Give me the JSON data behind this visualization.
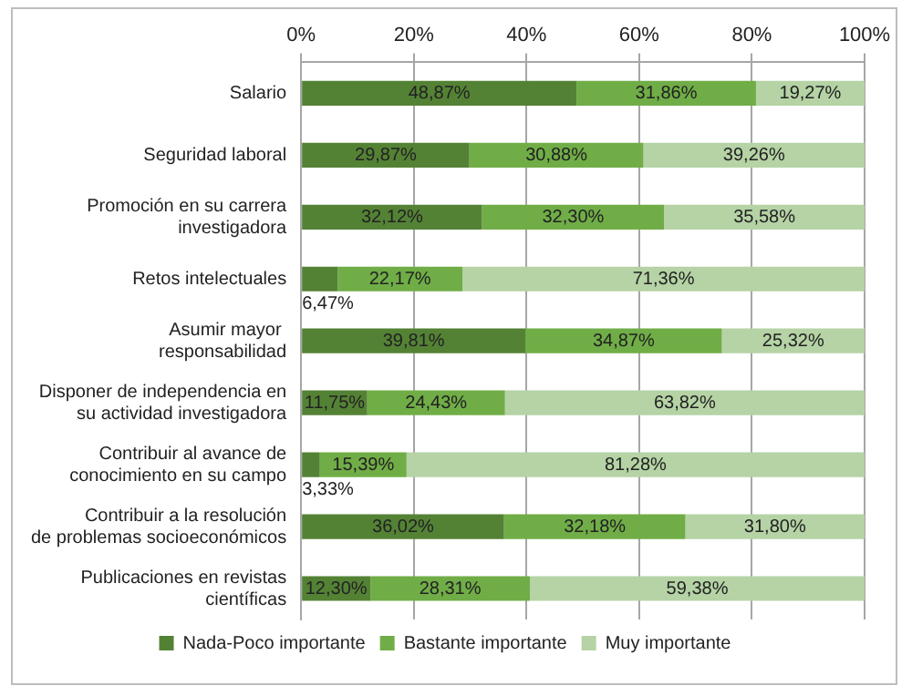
{
  "chart_data": {
    "type": "bar",
    "orientation": "horizontal",
    "stacked": true,
    "categories": [
      "Salario",
      "Seguridad laboral",
      "Promoción en su carrera investigadora",
      "Retos intelectuales",
      "Asumir mayor  responsabilidad",
      "Disponer de independencia en su actividad investigadora",
      "Contribuir al avance de conocimiento en su campo",
      "Contribuir a la resolución de problemas socioeconómicos",
      "Publicaciones en revistas científicas"
    ],
    "series": [
      {
        "name": "Nada-Poco importante",
        "color": "#548235",
        "values": [
          48.87,
          29.87,
          32.12,
          6.47,
          39.81,
          11.75,
          3.33,
          36.02,
          12.3
        ],
        "value_labels": [
          "48,87%",
          "29,87%",
          "32,12%",
          "6,47%",
          "39,81%",
          "11,75%",
          "3,33%",
          "36,02%",
          "12,30%"
        ]
      },
      {
        "name": "Bastante importante",
        "color": "#70ad47",
        "values": [
          31.86,
          30.88,
          32.3,
          22.17,
          34.87,
          24.43,
          15.39,
          32.18,
          28.31
        ],
        "value_labels": [
          "31,86%",
          "30,88%",
          "32,30%",
          "22,17%",
          "34,87%",
          "24,43%",
          "15,39%",
          "32,18%",
          "28,31%"
        ]
      },
      {
        "name": "Muy importante",
        "color": "#b5d3a5",
        "values": [
          19.27,
          39.26,
          35.58,
          71.36,
          25.32,
          63.82,
          81.28,
          31.8,
          59.38
        ],
        "value_labels": [
          "19,27%",
          "39,26%",
          "35,58%",
          "71,36%",
          "25,32%",
          "63,82%",
          "81,28%",
          "31,80%",
          "59,38%"
        ]
      }
    ],
    "xlim": [
      0,
      100
    ],
    "xticks": [
      {
        "value": 0,
        "label": "0%"
      },
      {
        "value": 20,
        "label": "20%"
      },
      {
        "value": 40,
        "label": "40%"
      },
      {
        "value": 60,
        "label": "60%"
      },
      {
        "value": 80,
        "label": "80%"
      },
      {
        "value": 100,
        "label": "100%"
      }
    ],
    "grid": "x",
    "legend": "bottom"
  }
}
